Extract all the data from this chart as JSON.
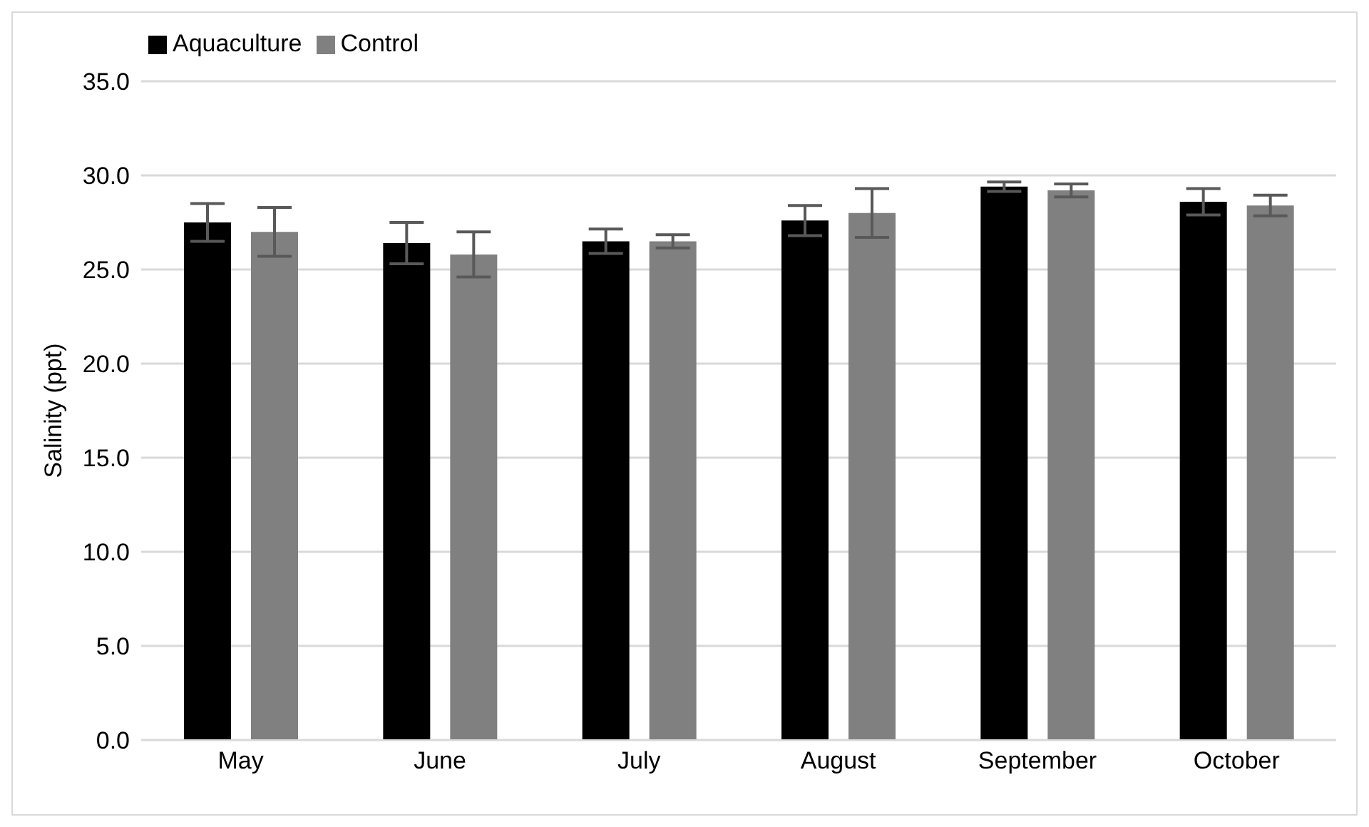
{
  "chart_data": {
    "type": "bar",
    "ylabel": "Salinity (ppt)",
    "categories": [
      "May",
      "June",
      "July",
      "August",
      "September",
      "October"
    ],
    "series": [
      {
        "name": "Aquaculture",
        "color": "#000000",
        "values": [
          27.5,
          26.4,
          26.5,
          27.6,
          29.4,
          28.6
        ],
        "errors": [
          1.0,
          1.1,
          0.65,
          0.8,
          0.25,
          0.7
        ]
      },
      {
        "name": "Control",
        "color": "#808080",
        "values": [
          27.0,
          25.8,
          26.5,
          28.0,
          29.2,
          28.4
        ],
        "errors": [
          1.3,
          1.2,
          0.35,
          1.3,
          0.35,
          0.55
        ]
      }
    ],
    "ylim": [
      0,
      35
    ],
    "yticks": [
      {
        "value": 0,
        "label": "0.0"
      },
      {
        "value": 5,
        "label": "5.0"
      },
      {
        "value": 10,
        "label": "10.0"
      },
      {
        "value": 15,
        "label": "15.0"
      },
      {
        "value": 20,
        "label": "20.0"
      },
      {
        "value": 25,
        "label": "25.0"
      },
      {
        "value": 30,
        "label": "30.0"
      },
      {
        "value": 35,
        "label": "35.0"
      }
    ],
    "grid": "y",
    "legend": "top left"
  }
}
